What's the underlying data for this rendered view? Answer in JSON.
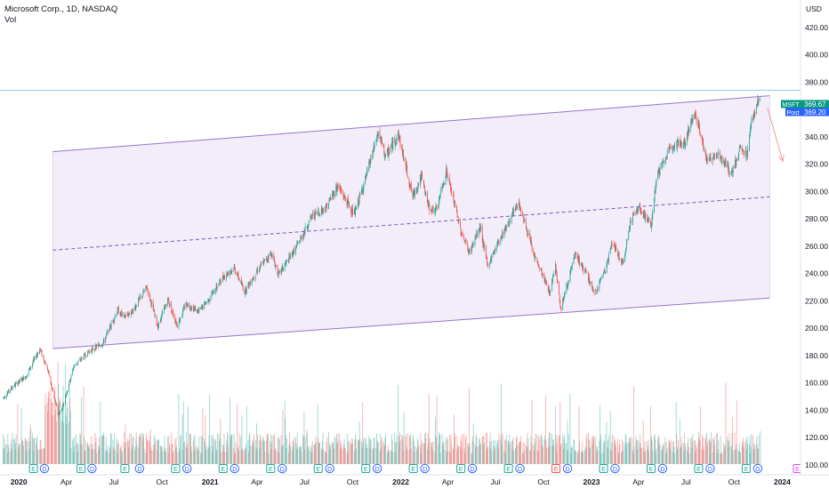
{
  "header": {
    "title": "Microsoft Corp., 1D, NASDAQ",
    "indicator": "Vol"
  },
  "currency_label": "USD",
  "price_tags": {
    "symbol": {
      "label": "MSFT",
      "value": "369.67",
      "color": "#089981"
    },
    "post": {
      "label": "Post",
      "value": "369.20",
      "color": "#2962ff"
    }
  },
  "colors": {
    "up": "#26a69a",
    "down": "#ef5350",
    "channel_line": "#9575cd",
    "channel_fill": "#ede7f6",
    "channel_mid": "#7e57c2",
    "hline": "#90caf9",
    "arrow": "#ef9a9a"
  },
  "chart_data": {
    "type": "candlestick",
    "symbol": "MSFT",
    "interval": "1D",
    "y_axis": {
      "ticks": [
        100,
        120,
        140,
        160,
        180,
        200,
        220,
        240,
        260,
        280,
        300,
        320,
        340,
        360,
        380,
        400,
        420
      ],
      "range": [
        94,
        440
      ],
      "labels_with_decimals": true
    },
    "x_axis": {
      "ticks": [
        "2020",
        "Apr",
        "Jul",
        "Oct",
        "2021",
        "Apr",
        "Jul",
        "Oct",
        "2022",
        "Apr",
        "Jul",
        "Oct",
        "2023",
        "Apr",
        "Jul",
        "Oct",
        "2024"
      ],
      "bold": [
        "2020",
        "2021",
        "2022",
        "2023",
        "2024"
      ],
      "range": [
        "2019-11-26",
        "2024-02-05"
      ]
    },
    "price_path": [
      [
        "2019-12-02",
        149
      ],
      [
        "2019-12-20",
        157
      ],
      [
        "2020-01-15",
        165
      ],
      [
        "2020-02-10",
        185
      ],
      [
        "2020-02-25",
        170
      ],
      [
        "2020-03-16",
        137
      ],
      [
        "2020-03-23",
        140
      ],
      [
        "2020-04-15",
        172
      ],
      [
        "2020-05-15",
        183
      ],
      [
        "2020-06-10",
        189
      ],
      [
        "2020-07-08",
        213
      ],
      [
        "2020-07-20",
        208
      ],
      [
        "2020-08-05",
        212
      ],
      [
        "2020-09-02",
        230
      ],
      [
        "2020-09-23",
        201
      ],
      [
        "2020-10-12",
        221
      ],
      [
        "2020-10-30",
        202
      ],
      [
        "2020-11-16",
        218
      ],
      [
        "2020-12-10",
        212
      ],
      [
        "2020-12-31",
        222
      ],
      [
        "2021-01-27",
        238
      ],
      [
        "2021-02-16",
        244
      ],
      [
        "2021-03-08",
        227
      ],
      [
        "2021-04-01",
        242
      ],
      [
        "2021-04-28",
        255
      ],
      [
        "2021-05-12",
        239
      ],
      [
        "2021-06-15",
        259
      ],
      [
        "2021-07-15",
        282
      ],
      [
        "2021-08-10",
        288
      ],
      [
        "2021-09-02",
        304
      ],
      [
        "2021-10-04",
        283
      ],
      [
        "2021-10-26",
        310
      ],
      [
        "2021-11-19",
        343
      ],
      [
        "2021-12-03",
        325
      ],
      [
        "2021-12-27",
        342
      ],
      [
        "2022-01-24",
        296
      ],
      [
        "2022-02-09",
        311
      ],
      [
        "2022-02-24",
        288
      ],
      [
        "2022-03-10",
        286
      ],
      [
        "2022-03-29",
        315
      ],
      [
        "2022-04-26",
        271
      ],
      [
        "2022-05-12",
        255
      ],
      [
        "2022-06-02",
        274
      ],
      [
        "2022-06-16",
        245
      ],
      [
        "2022-07-05",
        262
      ],
      [
        "2022-08-15",
        292
      ],
      [
        "2022-09-13",
        253
      ],
      [
        "2022-10-13",
        226
      ],
      [
        "2022-10-24",
        247
      ],
      [
        "2022-11-03",
        214
      ],
      [
        "2022-12-01",
        254
      ],
      [
        "2022-12-28",
        235
      ],
      [
        "2023-01-06",
        224
      ],
      [
        "2023-01-31",
        247
      ],
      [
        "2023-02-09",
        263
      ],
      [
        "2023-03-02",
        246
      ],
      [
        "2023-03-17",
        280
      ],
      [
        "2023-04-03",
        288
      ],
      [
        "2023-04-25",
        275
      ],
      [
        "2023-05-05",
        310
      ],
      [
        "2023-06-05",
        335
      ],
      [
        "2023-06-28",
        335
      ],
      [
        "2023-07-18",
        359
      ],
      [
        "2023-08-10",
        322
      ],
      [
        "2023-09-01",
        328
      ],
      [
        "2023-09-26",
        312
      ],
      [
        "2023-10-12",
        331
      ],
      [
        "2023-10-26",
        327
      ],
      [
        "2023-11-03",
        352
      ],
      [
        "2023-11-20",
        370
      ]
    ],
    "annotations": {
      "horizontal_line": 374,
      "channel": {
        "start": "2020-03-06",
        "end": "2023-12-08",
        "upper": [
          329,
          370
        ],
        "mid": [
          257,
          296
        ],
        "lower": [
          185,
          222
        ]
      },
      "forecast_arrow": {
        "from": [
          "2023-12-04",
          361
        ],
        "to": [
          "2024-01-02",
          322
        ]
      }
    },
    "events": [
      {
        "date": "2020-01-29",
        "type": "E"
      },
      {
        "date": "2020-02-19",
        "type": "D"
      },
      {
        "date": "2020-04-29",
        "type": "E"
      },
      {
        "date": "2020-05-20",
        "type": "D"
      },
      {
        "date": "2020-07-22",
        "type": "E"
      },
      {
        "date": "2020-08-19",
        "type": "D"
      },
      {
        "date": "2020-10-27",
        "type": "E"
      },
      {
        "date": "2020-11-18",
        "type": "D"
      },
      {
        "date": "2021-01-26",
        "type": "E"
      },
      {
        "date": "2021-02-17",
        "type": "D"
      },
      {
        "date": "2021-04-27",
        "type": "E"
      },
      {
        "date": "2021-05-19",
        "type": "D"
      },
      {
        "date": "2021-07-27",
        "type": "E"
      },
      {
        "date": "2021-08-18",
        "type": "D"
      },
      {
        "date": "2021-10-26",
        "type": "E"
      },
      {
        "date": "2021-11-17",
        "type": "D"
      },
      {
        "date": "2022-01-25",
        "type": "E"
      },
      {
        "date": "2022-02-16",
        "type": "D"
      },
      {
        "date": "2022-04-26",
        "type": "E"
      },
      {
        "date": "2022-05-18",
        "type": "D"
      },
      {
        "date": "2022-07-26",
        "type": "E"
      },
      {
        "date": "2022-08-17",
        "type": "D"
      },
      {
        "date": "2022-10-25",
        "type": "E",
        "miss": true
      },
      {
        "date": "2022-11-16",
        "type": "D"
      },
      {
        "date": "2023-01-24",
        "type": "E"
      },
      {
        "date": "2023-02-15",
        "type": "D"
      },
      {
        "date": "2023-04-25",
        "type": "E"
      },
      {
        "date": "2023-05-17",
        "type": "D"
      },
      {
        "date": "2023-07-25",
        "type": "E"
      },
      {
        "date": "2023-08-16",
        "type": "D"
      },
      {
        "date": "2023-10-24",
        "type": "E"
      },
      {
        "date": "2023-11-15",
        "type": "D"
      },
      {
        "date": "2024-01-30",
        "type": "E",
        "upcoming": true
      }
    ]
  }
}
